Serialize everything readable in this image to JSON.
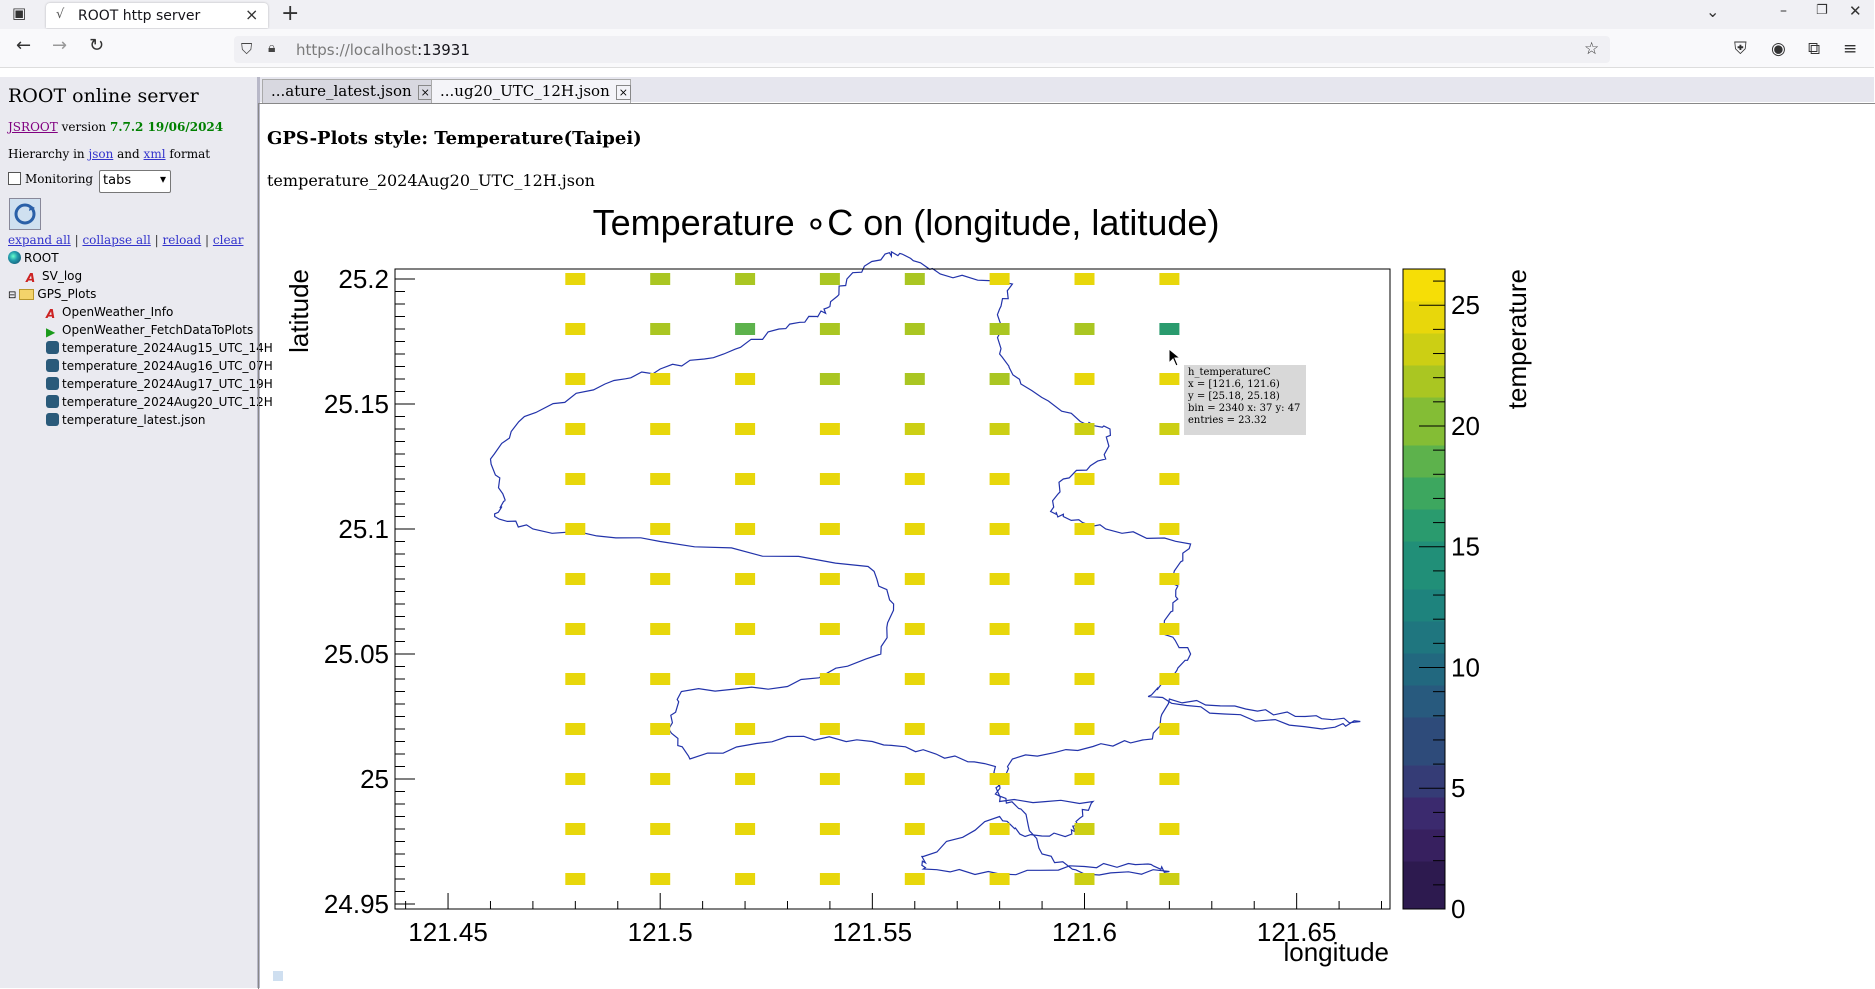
{
  "browser": {
    "tab_title": "ROOT http server",
    "url_host": "https://localhost",
    "url_port": ":13931"
  },
  "sidebar": {
    "title": "ROOT online server",
    "jsroot_link": "JSROOT",
    "version_word": "version",
    "version": "7.7.2 19/06/2024",
    "hierarchy_prefix": "Hierarchy in",
    "json_link": "json",
    "and_word": "and",
    "xml_link": "xml",
    "format_word": "format",
    "monitoring_label": "Monitoring",
    "layout_select": "tabs",
    "actions": [
      "expand all",
      "collapse all",
      "reload",
      "clear"
    ],
    "tree": {
      "root": "ROOT",
      "sv_log": "SV_log",
      "gps_plots": "GPS_Plots",
      "items": [
        "OpenWeather_Info",
        "OpenWeather_FetchDataToPlots",
        "temperature_2024Aug15_UTC_14H",
        "temperature_2024Aug16_UTC_07H",
        "temperature_2024Aug17_UTC_19H",
        "temperature_2024Aug20_UTC_12H",
        "temperature_latest.json"
      ]
    }
  },
  "main": {
    "tabs": [
      "...ature_latest.json",
      "...ug20_UTC_12H.json"
    ],
    "heading": "GPS-Plots style: Temperature(Taipei)",
    "filename": "temperature_2024Aug20_UTC_12H.json"
  },
  "chart_data": {
    "type": "heatmap",
    "title": "Temperature ∘C on (longitude, latitude)",
    "xlabel": "longitude",
    "ylabel": "latitude",
    "zlabel": "temperature",
    "x_ticks": [
      "121.45",
      "121.5",
      "121.55",
      "121.6",
      "121.65"
    ],
    "y_ticks": [
      "24.95",
      "25",
      "25.05",
      "25.1",
      "25.15",
      "25.2"
    ],
    "z_ticks": [
      "0",
      "5",
      "10",
      "15",
      "20",
      "25"
    ],
    "xlim": [
      121.4375,
      121.672
    ],
    "ylim": [
      24.948,
      25.204
    ],
    "zlim": [
      0,
      26.5
    ],
    "x": [
      121.48,
      121.5,
      121.52,
      121.54,
      121.56,
      121.58,
      121.6,
      121.62
    ],
    "y": [
      25.2,
      25.18,
      25.16,
      25.14,
      25.12,
      25.1,
      25.08,
      25.06,
      25.04,
      25.02,
      25.0,
      24.98,
      24.96
    ],
    "z": [
      [
        24.8,
        22.0,
        22.0,
        21.0,
        22.0,
        24.8,
        24.8,
        24.8
      ],
      [
        24.8,
        21.0,
        19.0,
        22.0,
        22.0,
        22.0,
        22.0,
        16.0
      ],
      [
        24.8,
        24.8,
        24.0,
        22.0,
        22.0,
        21.0,
        24.0,
        24.8
      ],
      [
        24.8,
        24.8,
        24.8,
        24.8,
        23.0,
        23.0,
        23.0,
        23.0
      ],
      [
        24.8,
        24.8,
        24.8,
        24.8,
        24.8,
        24.8,
        24.8,
        24.8
      ],
      [
        25.0,
        25.0,
        25.0,
        25.0,
        25.0,
        25.0,
        25.0,
        25.0
      ],
      [
        25.0,
        25.0,
        25.0,
        25.0,
        25.0,
        25.0,
        25.0,
        25.0
      ],
      [
        25.0,
        25.0,
        25.0,
        25.0,
        25.0,
        25.0,
        25.0,
        25.0
      ],
      [
        25.0,
        25.0,
        25.0,
        25.0,
        25.0,
        25.0,
        25.0,
        25.0
      ],
      [
        25.0,
        25.0,
        25.0,
        25.0,
        25.0,
        25.0,
        25.0,
        25.0
      ],
      [
        25.0,
        25.0,
        25.0,
        25.0,
        25.0,
        25.0,
        25.0,
        25.0
      ],
      [
        25.0,
        25.0,
        25.0,
        25.0,
        25.0,
        25.0,
        23.0,
        24.0
      ],
      [
        24.0,
        24.8,
        24.8,
        24.8,
        24.8,
        24.8,
        23.0,
        23.0
      ]
    ],
    "colors": [
      "#2d1a4f",
      "#37205f",
      "#3b2a6e",
      "#353c76",
      "#2e4b7a",
      "#285a7e",
      "#22687f",
      "#1f767f",
      "#1e837d",
      "#218f78",
      "#2a9b6e",
      "#3da75f",
      "#5db24c",
      "#84bd35",
      "#aac622",
      "#cccf14",
      "#e8d70b",
      "#f6de06"
    ],
    "border_color": "#2233aa",
    "tooltip": {
      "name": "h_temperatureC",
      "x": "x = [121.6, 121.6)",
      "y": "y = [25.18, 25.18)",
      "bin": "bin = 2340  x: 37  y: 47",
      "entries": "entries = 23.32"
    }
  }
}
